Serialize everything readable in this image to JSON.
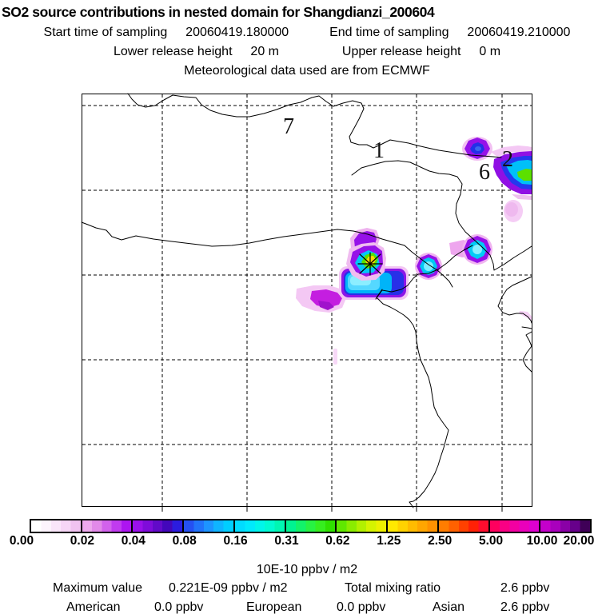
{
  "header": {
    "title": "SO2 source contributions in nested domain for Shangdianzi_200604",
    "sampling": {
      "start_label": "Start time of sampling",
      "start_value": "20060419.180000",
      "end_label": "End time of sampling",
      "end_value": "20060419.210000"
    },
    "release": {
      "lower_label": "Lower release height",
      "lower_value": "20 m",
      "upper_label": "Upper release height",
      "upper_value": "0 m"
    },
    "met_line": "Meteorological data used are from ECMWF"
  },
  "map": {
    "region_labels": [
      {
        "text": "7"
      },
      {
        "text": "1"
      },
      {
        "text": "6"
      },
      {
        "text": "2"
      }
    ]
  },
  "colorbar": {
    "tick_labels": [
      "0.00",
      "0.02",
      "0.04",
      "0.08",
      "0.16",
      "0.31",
      "0.62",
      "1.25",
      "2.50",
      "5.00",
      "10.00",
      "20.00"
    ],
    "units": "10E-10 ppbv / m2",
    "segments": [
      [
        "#ffffff",
        "#fdf4fd",
        "#fae6fa",
        "#f6d6f6",
        "#f1c3f1"
      ],
      [
        "#eda9ed",
        "#e28ae9",
        "#d262ec",
        "#c13bef",
        "#ad15f1"
      ],
      [
        "#9a10ea",
        "#7f0cda",
        "#620ac9",
        "#4307bb",
        "#2b1cdf"
      ],
      [
        "#2550f2",
        "#2173fa",
        "#1d94ff",
        "#0fb4ff",
        "#00ceff"
      ],
      [
        "#00dcff",
        "#00eafc",
        "#00f6ea",
        "#00fbd2",
        "#00f7b2"
      ],
      [
        "#00f392",
        "#12f36a",
        "#27f243",
        "#36ee1f",
        "#2fe100"
      ],
      [
        "#5fe800",
        "#8aec00",
        "#b2f000",
        "#d5f300",
        "#edf000"
      ],
      [
        "#ffe900",
        "#ffd200",
        "#ffbb00",
        "#ffa600",
        "#ff9200"
      ],
      [
        "#ff7d00",
        "#ff6100",
        "#ff4100",
        "#ff2106",
        "#ff0d2e"
      ],
      [
        "#ff005e",
        "#fa0084",
        "#f300a2",
        "#ea00bb",
        "#de00d0"
      ],
      [
        "#c400cb",
        "#a900bd",
        "#8a00a7",
        "#67008b",
        "#3f0057"
      ]
    ]
  },
  "footer": {
    "max_label": "Maximum value",
    "max_value": "0.221E-09 ppbv / m2",
    "total_label": "Total mixing ratio",
    "total_value": "2.6 ppbv",
    "american_label": "American",
    "american_value": "0.0 ppbv",
    "european_label": "European",
    "european_value": "0.0 ppbv",
    "asian_label": "Asian",
    "asian_value": "2.6 ppbv"
  },
  "chart_data": {
    "type": "heatmap",
    "title": "SO2 source contributions in nested domain for Shangdianzi_200604",
    "start_time_of_sampling": "20060419.180000",
    "end_time_of_sampling": "20060419.210000",
    "lower_release_height_m": 20,
    "upper_release_height_m": 0,
    "meteorological_data_source": "ECMWF",
    "colorbar_scale_values": [
      0.0,
      0.02,
      0.04,
      0.08,
      0.16,
      0.31,
      0.62,
      1.25,
      2.5,
      5.0,
      10.0,
      20.0
    ],
    "colorbar_units": "10E-10 ppbv / m2",
    "maximum_value": "0.221E-09 ppbv / m2",
    "total_mixing_ratio_ppbv": 2.6,
    "contributions_ppbv": {
      "American": 0.0,
      "European": 0.0,
      "Asian": 2.6
    },
    "map_region_labels": [
      "7",
      "1",
      "6",
      "2"
    ],
    "grid": "dashed, 5x5 cells",
    "legend_position": "bottom",
    "plumes": [
      {
        "x_frac": 0.64,
        "y_frac": 0.41,
        "peak_bin": "1.25-2.50",
        "desc": "plume at receptor star marker, yellow-green core"
      },
      {
        "x_frac": 0.65,
        "y_frac": 0.46,
        "peak_bin": "0.16-0.31",
        "desc": "large cyan-blue lobe below marker"
      },
      {
        "x_frac": 0.54,
        "y_frac": 0.5,
        "peak_bin": "0.02-0.04",
        "desc": "magenta tail extending west"
      },
      {
        "x_frac": 0.77,
        "y_frac": 0.42,
        "peak_bin": "0.16-0.31",
        "desc": "cyan octagonal cell on coastline"
      },
      {
        "x_frac": 0.88,
        "y_frac": 0.38,
        "peak_bin": "0.16-0.31",
        "desc": "cyan octagonal cell, pink fringe west"
      },
      {
        "x_frac": 0.88,
        "y_frac": 0.13,
        "peak_bin": "0.04-0.08",
        "desc": "small blue cell near region label 6"
      },
      {
        "x_frac": 0.97,
        "y_frac": 0.19,
        "peak_bin": "0.31-0.62",
        "desc": "clipped plume at east edge with green core"
      },
      {
        "x_frac": 0.95,
        "y_frac": 0.28,
        "peak_bin": "0.00-0.02",
        "desc": "faint pink patch below east-edge plume"
      }
    ]
  }
}
